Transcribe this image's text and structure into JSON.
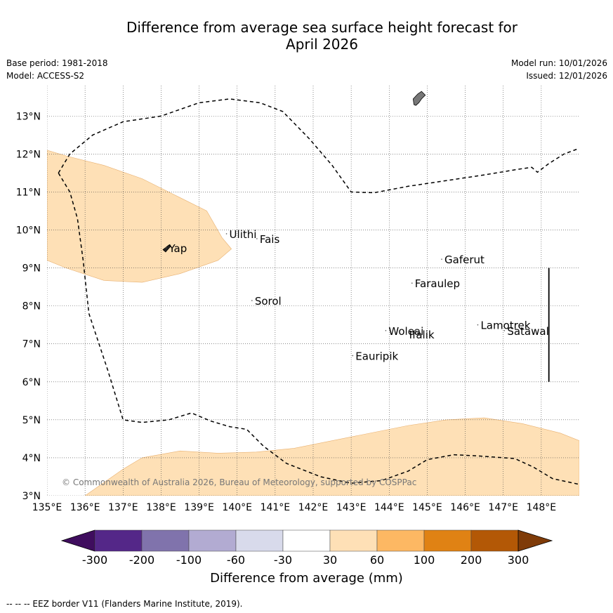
{
  "title_line1": "Difference from average sea surface height forecast for",
  "title_line2": "April 2026",
  "base_period": "Base period: 1981-2018",
  "model": "Model: ACCESS-S2",
  "model_run": "Model run: 10/01/2026",
  "issued": "Issued: 12/01/2026",
  "copyright": "© Commonwealth of Australia 2026, Bureau of Meteorology, supported by COSPPac",
  "footer": "-- -- -- EEZ border V11 (Flanders Marine Institute, 2019).",
  "colorbar": {
    "title": "Difference from average (mm)",
    "ticks": [
      "-300",
      "-200",
      "-100",
      "-60",
      "-30",
      "30",
      "60",
      "100",
      "200",
      "300"
    ],
    "colors": [
      "#3f0d5e",
      "#542788",
      "#8073ac",
      "#b2abd2",
      "#d8daeb",
      "#ffffff",
      "#fee0b6",
      "#fdb863",
      "#e08214",
      "#b35806",
      "#7f3b08"
    ]
  },
  "chart_data": {
    "type": "map",
    "lon_range": [
      135,
      149
    ],
    "lat_range": [
      3,
      13.8
    ],
    "lon_ticks": [
      135,
      136,
      137,
      138,
      139,
      140,
      141,
      142,
      143,
      144,
      145,
      146,
      147,
      148
    ],
    "lon_labels": [
      "135°E",
      "136°E",
      "137°E",
      "138°E",
      "139°E",
      "140°E",
      "141°E",
      "142°E",
      "143°E",
      "144°E",
      "145°E",
      "146°E",
      "147°E",
      "148°E"
    ],
    "lat_ticks": [
      3,
      4,
      5,
      6,
      7,
      8,
      9,
      10,
      11,
      12,
      13
    ],
    "lat_labels": [
      "3°N",
      "4°N",
      "5°N",
      "6°N",
      "7°N",
      "8°N",
      "9°N",
      "10°N",
      "11°N",
      "12°N",
      "13°N"
    ],
    "places": [
      {
        "name": "Ulithi",
        "lon": 139.72,
        "lat": 9.9
      },
      {
        "name": "Fais",
        "lon": 140.52,
        "lat": 9.77
      },
      {
        "name": "Yap",
        "lon": 138.13,
        "lat": 9.53
      },
      {
        "name": "Gaferut",
        "lon": 145.38,
        "lat": 9.23
      },
      {
        "name": "Faraulep",
        "lon": 144.6,
        "lat": 8.6
      },
      {
        "name": "Sorol",
        "lon": 140.39,
        "lat": 8.14
      },
      {
        "name": "Woleai",
        "lon": 143.91,
        "lat": 7.35
      },
      {
        "name": "Ifalik",
        "lon": 144.45,
        "lat": 7.25
      },
      {
        "name": "Lamotrek",
        "lon": 146.33,
        "lat": 7.5
      },
      {
        "name": "Satawal",
        "lon": 147.03,
        "lat": 7.35
      },
      {
        "name": "Eauripik",
        "lon": 143.04,
        "lat": 6.69
      }
    ],
    "anomaly_regions": [
      {
        "category": "30 to 60 mm",
        "polygon": [
          [
            135,
            12.1
          ],
          [
            135.5,
            11.95
          ],
          [
            136.5,
            11.7
          ],
          [
            137.5,
            11.35
          ],
          [
            138.3,
            10.95
          ],
          [
            139.2,
            10.5
          ],
          [
            139.6,
            9.8
          ],
          [
            139.85,
            9.5
          ],
          [
            139.5,
            9.2
          ],
          [
            138.5,
            8.85
          ],
          [
            137.5,
            8.62
          ],
          [
            136.5,
            8.67
          ],
          [
            135.5,
            9.0
          ],
          [
            135,
            9.2
          ]
        ]
      },
      {
        "category": "30 to 60 mm",
        "polygon": [
          [
            136,
            3
          ],
          [
            137,
            3.7
          ],
          [
            137.5,
            4.0
          ],
          [
            138.5,
            4.18
          ],
          [
            139.5,
            4.12
          ],
          [
            140.5,
            4.15
          ],
          [
            141.5,
            4.25
          ],
          [
            143,
            4.55
          ],
          [
            144.5,
            4.85
          ],
          [
            145.5,
            5.0
          ],
          [
            146.5,
            5.05
          ],
          [
            147.5,
            4.9
          ],
          [
            148.5,
            4.65
          ],
          [
            149,
            4.45
          ],
          [
            149,
            3
          ]
        ]
      }
    ],
    "eez_borders": [
      [
        [
          135.3,
          11.5
        ],
        [
          135.6,
          12.0
        ],
        [
          136.2,
          12.5
        ],
        [
          137,
          12.85
        ],
        [
          138,
          13.0
        ],
        [
          139,
          13.35
        ],
        [
          139.8,
          13.45
        ],
        [
          140.6,
          13.35
        ],
        [
          141.2,
          13.12
        ],
        [
          141.9,
          12.4
        ],
        [
          142.5,
          11.7
        ],
        [
          143,
          11.0
        ],
        [
          143.6,
          10.98
        ],
        [
          144.5,
          11.15
        ],
        [
          145.5,
          11.3
        ],
        [
          146.5,
          11.45
        ],
        [
          147.4,
          11.6
        ],
        [
          147.75,
          11.65
        ],
        [
          147.9,
          11.52
        ],
        [
          148.2,
          11.75
        ],
        [
          148.6,
          12.0
        ],
        [
          149,
          12.15
        ]
      ],
      [
        [
          135.3,
          11.5
        ],
        [
          135.6,
          11.0
        ],
        [
          135.8,
          10.3
        ],
        [
          135.95,
          9.2
        ],
        [
          136.1,
          7.8
        ],
        [
          136.6,
          6.3
        ],
        [
          137.0,
          5.0
        ],
        [
          137.5,
          4.93
        ],
        [
          138.2,
          5.0
        ],
        [
          138.8,
          5.18
        ],
        [
          139.3,
          4.97
        ],
        [
          139.8,
          4.82
        ],
        [
          140.25,
          4.75
        ],
        [
          140.7,
          4.3
        ],
        [
          141.3,
          3.85
        ],
        [
          142.2,
          3.5
        ],
        [
          143,
          3.33
        ],
        [
          143.8,
          3.4
        ],
        [
          144.5,
          3.65
        ],
        [
          145.0,
          3.95
        ],
        [
          145.7,
          4.08
        ],
        [
          146.3,
          4.05
        ],
        [
          147.3,
          3.98
        ],
        [
          147.8,
          3.75
        ],
        [
          148.3,
          3.45
        ],
        [
          149,
          3.3
        ]
      ]
    ],
    "islands": [
      {
        "name": "yap-island",
        "polygon": [
          [
            138.05,
            9.48
          ],
          [
            138.2,
            9.6
          ],
          [
            138.25,
            9.57
          ],
          [
            138.12,
            9.42
          ]
        ]
      },
      {
        "name": "guam-island",
        "polygon": [
          [
            144.63,
            13.45
          ],
          [
            144.75,
            13.58
          ],
          [
            144.85,
            13.65
          ],
          [
            144.95,
            13.55
          ],
          [
            144.85,
            13.45
          ],
          [
            144.78,
            13.35
          ],
          [
            144.7,
            13.28
          ],
          [
            144.65,
            13.3
          ]
        ]
      }
    ],
    "marker_line": {
      "lon": 148.2,
      "lat_from": 6.0,
      "lat_to": 9.0
    }
  }
}
